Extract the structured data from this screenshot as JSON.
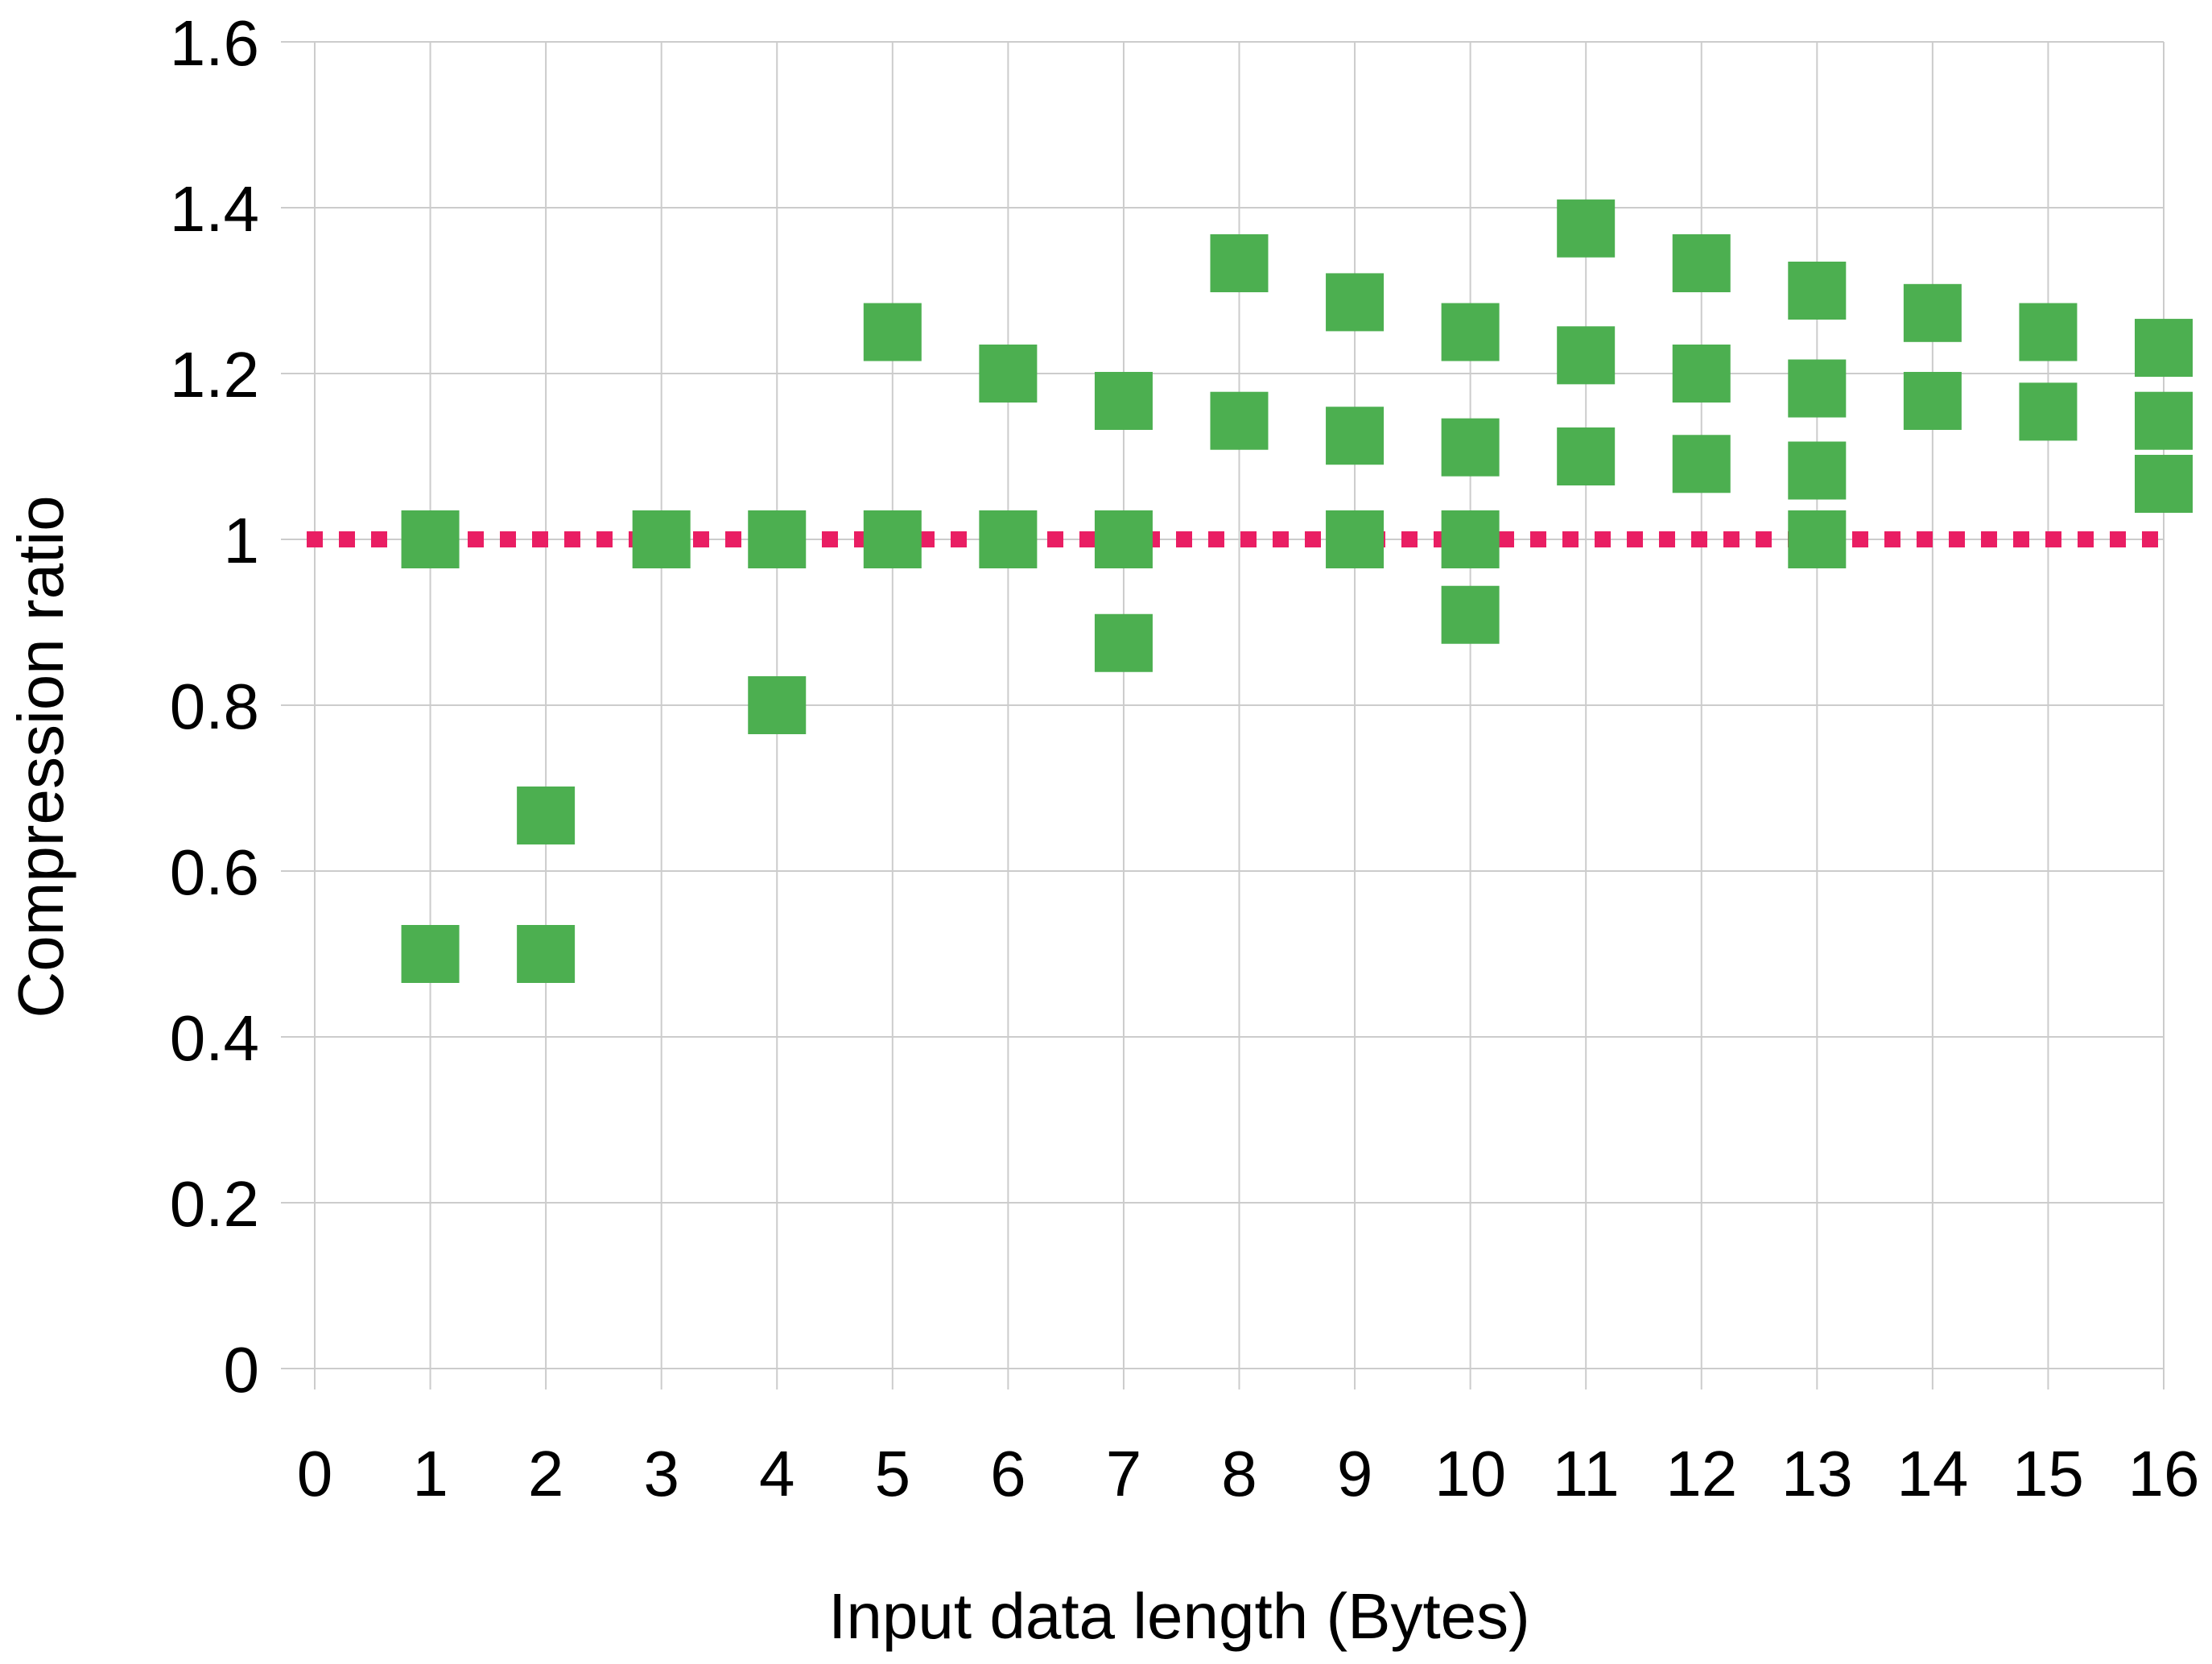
{
  "chart_data": {
    "type": "scatter",
    "title": "",
    "xlabel": "Input data length (Bytes)",
    "ylabel": "Compression ratio",
    "xlim": [
      0,
      16
    ],
    "ylim": [
      0,
      1.6
    ],
    "x_ticks": [
      "0",
      "1",
      "2",
      "3",
      "4",
      "5",
      "6",
      "7",
      "8",
      "9",
      "10",
      "11",
      "12",
      "13",
      "14",
      "15",
      "16"
    ],
    "y_ticks": [
      "0",
      "0.2",
      "0.4",
      "0.6",
      "0.8",
      "1",
      "1.2",
      "1.4",
      "1.6"
    ],
    "grid": true,
    "legend": "none",
    "series": [
      {
        "marker": "square",
        "color": "#4caf50",
        "points": [
          [
            1,
            1.0
          ],
          [
            1,
            0.5
          ],
          [
            2,
            0.667
          ],
          [
            2,
            0.5
          ],
          [
            3,
            1.0
          ],
          [
            4,
            1.0
          ],
          [
            4,
            0.8
          ],
          [
            5,
            1.25
          ],
          [
            5,
            1.0
          ],
          [
            6,
            1.2
          ],
          [
            6,
            1.0
          ],
          [
            7,
            1.167
          ],
          [
            7,
            1.0
          ],
          [
            7,
            0.875
          ],
          [
            8,
            1.333
          ],
          [
            8,
            1.143
          ],
          [
            9,
            1.286
          ],
          [
            9,
            1.125
          ],
          [
            9,
            1.0
          ],
          [
            10,
            1.25
          ],
          [
            10,
            1.111
          ],
          [
            10,
            1.0
          ],
          [
            10,
            0.909
          ],
          [
            11,
            1.375
          ],
          [
            11,
            1.222
          ],
          [
            11,
            1.1
          ],
          [
            12,
            1.333
          ],
          [
            12,
            1.2
          ],
          [
            12,
            1.091
          ],
          [
            13,
            1.3
          ],
          [
            13,
            1.182
          ],
          [
            13,
            1.083
          ],
          [
            13,
            1.0
          ],
          [
            14,
            1.273
          ],
          [
            14,
            1.167
          ],
          [
            15,
            1.25
          ],
          [
            15,
            1.154
          ],
          [
            16,
            1.231
          ],
          [
            16,
            1.143
          ],
          [
            16,
            1.067
          ]
        ]
      }
    ],
    "reference_line": {
      "y": 1.0,
      "style": "dotted",
      "color": "#e91e63"
    }
  }
}
